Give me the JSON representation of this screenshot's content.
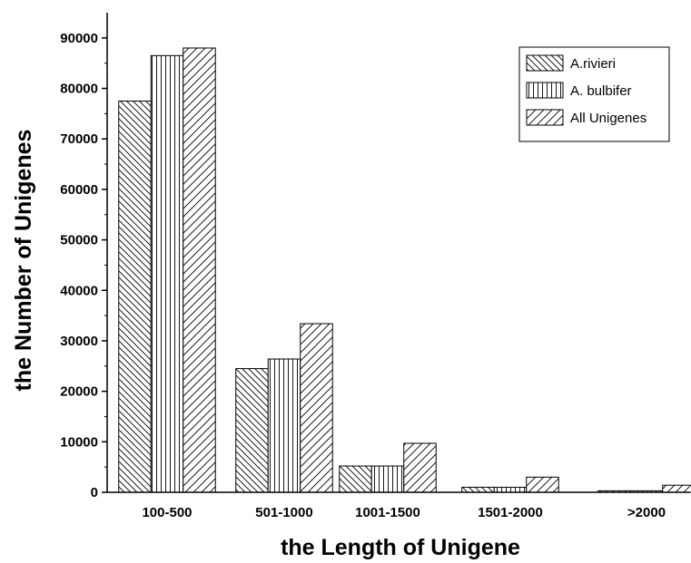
{
  "chart_data": {
    "type": "bar",
    "title": "",
    "xlabel": "the Length of Unigene",
    "ylabel": "the Number of Unigenes",
    "categories": [
      "100-500",
      "501-1000",
      "1001-1500",
      "1501-2000",
      ">2000"
    ],
    "series": [
      {
        "name": "A.rivieri",
        "pattern": "diagonal-backslash",
        "values": [
          77500,
          24500,
          5200,
          1000,
          300
        ]
      },
      {
        "name": "A. bulbifer",
        "pattern": "vertical-lines",
        "values": [
          86500,
          26400,
          5200,
          1000,
          300
        ]
      },
      {
        "name": "All Unigenes",
        "pattern": "diagonal-slash",
        "values": [
          88000,
          33400,
          9700,
          3000,
          1400
        ]
      }
    ],
    "ylim": [
      0,
      95000
    ],
    "yticks": [
      0,
      10000,
      20000,
      30000,
      40000,
      50000,
      60000,
      70000,
      80000,
      90000
    ],
    "grid": false,
    "legend_position": "top-right",
    "colors": {
      "bar_fill": "#ffffff",
      "stroke": "#000000"
    }
  }
}
